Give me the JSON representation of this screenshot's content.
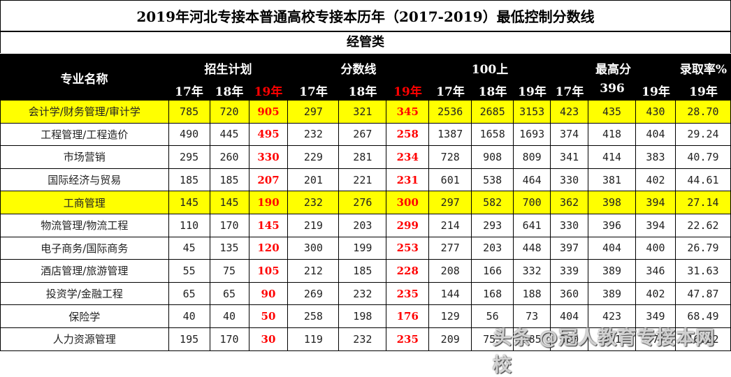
{
  "title": "2019年河北专接本普通高校专接本历年（2017-2019）最低控制分数线",
  "category": "经管类",
  "header": {
    "name_col": "专业名称",
    "groups": [
      "招生计划",
      "分数线",
      "100上",
      "最高分",
      "录取率%"
    ],
    "subcols": [
      "17年",
      "18年",
      "19年",
      "17年",
      "18年",
      "19年",
      "17年",
      "18年",
      "19年",
      "17年",
      "396",
      "19年",
      "19年"
    ]
  },
  "colors": {
    "highlight": "#ffff00",
    "emphasis": "#ff0000",
    "header_bg": "#000000"
  },
  "rows": [
    {
      "name": "会计学/财务管理/审计学",
      "highlight": true,
      "values": [
        "785",
        "720",
        "905",
        "297",
        "321",
        "345",
        "2536",
        "2685",
        "3153",
        "423",
        "435",
        "430",
        "28.70"
      ]
    },
    {
      "name": "工程管理/工程造价",
      "highlight": false,
      "values": [
        "490",
        "445",
        "495",
        "232",
        "267",
        "258",
        "1387",
        "1658",
        "1693",
        "374",
        "418",
        "404",
        "29.24"
      ]
    },
    {
      "name": "市场营销",
      "highlight": false,
      "values": [
        "295",
        "260",
        "330",
        "229",
        "281",
        "234",
        "728",
        "908",
        "809",
        "341",
        "414",
        "383",
        "40.79"
      ]
    },
    {
      "name": "国际经济与贸易",
      "highlight": false,
      "values": [
        "185",
        "185",
        "207",
        "201",
        "221",
        "231",
        "601",
        "538",
        "464",
        "330",
        "381",
        "402",
        "44.61"
      ]
    },
    {
      "name": "工商管理",
      "highlight": true,
      "values": [
        "145",
        "145",
        "190",
        "232",
        "276",
        "300",
        "297",
        "582",
        "700",
        "362",
        "398",
        "394",
        "27.14"
      ]
    },
    {
      "name": "物流管理/物流工程",
      "highlight": false,
      "values": [
        "110",
        "170",
        "145",
        "219",
        "203",
        "299",
        "214",
        "293",
        "641",
        "330",
        "396",
        "394",
        "22.62"
      ]
    },
    {
      "name": "电子商务/国际商务",
      "highlight": false,
      "values": [
        "45",
        "135",
        "120",
        "300",
        "199",
        "253",
        "277",
        "203",
        "448",
        "397",
        "404",
        "400",
        "26.79"
      ]
    },
    {
      "name": "酒店管理/旅游管理",
      "highlight": false,
      "values": [
        "55",
        "75",
        "105",
        "212",
        "185",
        "228",
        "208",
        "166",
        "332",
        "339",
        "389",
        "346",
        "31.63"
      ]
    },
    {
      "name": "投资学/金融工程",
      "highlight": false,
      "values": [
        "65",
        "65",
        "90",
        "269",
        "232",
        "235",
        "144",
        "168",
        "188",
        "360",
        "389",
        "402",
        "47.87"
      ]
    },
    {
      "name": "保险学",
      "highlight": false,
      "values": [
        "40",
        "40",
        "50",
        "258",
        "198",
        "176",
        "129",
        "56",
        "73",
        "404",
        "423",
        "349",
        "68.49"
      ]
    },
    {
      "name": "人力资源管理",
      "highlight": false,
      "values": [
        "195",
        "170",
        "30",
        "119",
        "232",
        "235",
        "209",
        "753",
        "185",
        "380",
        "391",
        "377",
        "16.22"
      ]
    }
  ],
  "watermark": "头条 @冠人教育专接本网校"
}
